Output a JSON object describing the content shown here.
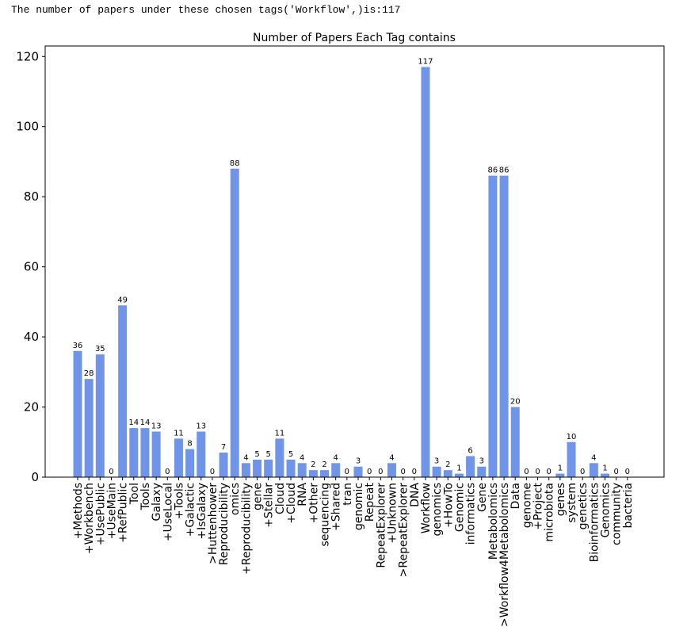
{
  "header": {
    "message": "The number of papers under these chosen tags('Workflow',)is:117"
  },
  "colors": {
    "bar": "#6f94e8",
    "axis": "#000000",
    "background": "#ffffff"
  },
  "chart_data": {
    "type": "bar",
    "title": "Number of Papers Each Tag contains",
    "xlabel": "",
    "ylabel": "",
    "ylim": [
      0,
      123
    ],
    "yticks": [
      0,
      20,
      40,
      60,
      80,
      100,
      120
    ],
    "grid": false,
    "categories": [
      "+Methods",
      "+Workbench",
      "+UsePublic",
      "+UseMain",
      "+RefPublic",
      "Tool",
      "Tools",
      "Galaxy",
      "+UseLocal",
      "+Tools",
      "+Galactic",
      "+IsGalaxy",
      ">Huttenhower",
      "Reproducibility",
      "omics",
      "+Reproducibility",
      "gene",
      "+Stellar",
      "Cloud",
      "+Cloud",
      "RNA",
      "+Other",
      "sequencing",
      "+Shared",
      "tran",
      "genomic",
      "Repeat",
      "RepeatExplorer",
      "+Unknown",
      ">RepeatExplorer",
      "DNA",
      "Workflow",
      "genomics",
      "+HowTo",
      "Genomic",
      "informatics",
      "Gene",
      "Metabolomics",
      ">Workflow4Metabolomics",
      "Data",
      "genome",
      "+Project",
      "microbiota",
      "genes",
      "system",
      "genetics",
      "Bioinformatics",
      "Genomics",
      "community",
      "bacteria"
    ],
    "values": [
      36,
      28,
      35,
      0,
      49,
      14,
      14,
      13,
      0,
      11,
      8,
      13,
      0,
      7,
      88,
      4,
      5,
      5,
      11,
      5,
      4,
      2,
      2,
      4,
      0,
      3,
      0,
      0,
      4,
      0,
      0,
      117,
      3,
      2,
      1,
      6,
      3,
      86,
      86,
      20,
      0,
      0,
      0,
      1,
      10,
      0,
      4,
      1,
      0,
      0
    ],
    "data_labels": [
      "36",
      "28",
      "35",
      "0",
      "49",
      "14",
      "14",
      "13",
      "0",
      "11",
      "8",
      "13",
      "0",
      "7",
      "88",
      "4",
      "5",
      "5",
      "11",
      "5",
      "4",
      "2",
      "2",
      "4",
      "0",
      "3",
      "0",
      "0",
      "4",
      "0",
      "0",
      "117",
      "3",
      "2",
      "1",
      "6",
      "3",
      "86",
      "86",
      "20",
      "0",
      "0",
      "0",
      "1",
      "10",
      "0",
      "4",
      "1",
      "0",
      "0"
    ]
  }
}
